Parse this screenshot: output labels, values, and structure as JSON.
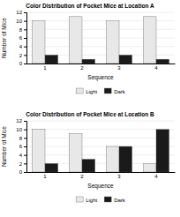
{
  "chart_data": [
    {
      "type": "bar",
      "title": "Color Distribution of Pocket Mice at Location A",
      "categories": [
        "1",
        "2",
        "3",
        "4"
      ],
      "series": [
        {
          "name": "Light",
          "color": "#e8e8e8",
          "values": [
            10,
            11,
            10,
            11
          ]
        },
        {
          "name": "Dark",
          "color": "#1a1a1a",
          "values": [
            2,
            1,
            2,
            1
          ]
        }
      ],
      "x_label": "Sequence",
      "y_label": "Number of Mice",
      "ylim": [
        0,
        12
      ],
      "yticks": [
        0,
        2,
        4,
        6,
        8,
        10,
        12
      ],
      "grid": true,
      "legend": "bottom"
    },
    {
      "type": "bar",
      "title": "Color Distribution of Pocket Mice at Location B",
      "categories": [
        "1",
        "2",
        "3",
        "4"
      ],
      "series": [
        {
          "name": "Light",
          "color": "#e8e8e8",
          "values": [
            10,
            9,
            6,
            2
          ]
        },
        {
          "name": "Dark",
          "color": "#1a1a1a",
          "values": [
            2,
            3,
            6,
            10
          ]
        }
      ],
      "x_label": "Sequence",
      "y_label": "Number of Mice",
      "ylim": [
        0,
        12
      ],
      "yticks": [
        0,
        2,
        4,
        6,
        8,
        10,
        12
      ],
      "grid": true,
      "legend": "bottom"
    }
  ]
}
